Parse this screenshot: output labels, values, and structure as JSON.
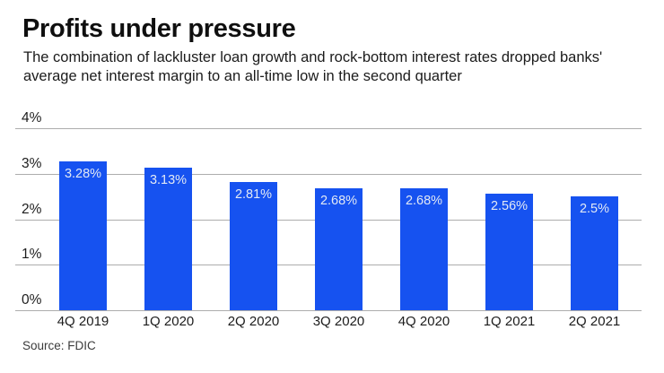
{
  "header": {
    "title": "Profits under pressure",
    "subtitle_lines": [
      "The combination of lackluster loan growth and rock-bottom interest rates dropped banks'",
      "average net interest margin to an all-time low in the second quarter"
    ]
  },
  "chart_data": {
    "type": "bar",
    "title": "Profits under pressure",
    "subtitle": "The combination of lackluster loan growth and rock-bottom interest rates dropped banks' average net interest margin to an all-time low in the second quarter",
    "categories": [
      "4Q 2019",
      "1Q 2020",
      "2Q 2020",
      "3Q 2020",
      "4Q 2020",
      "1Q 2021",
      "2Q 2021"
    ],
    "values": [
      3.28,
      3.13,
      2.81,
      2.68,
      2.68,
      2.56,
      2.5
    ],
    "value_labels": [
      "3.28%",
      "3.13%",
      "2.81%",
      "2.68%",
      "2.68%",
      "2.56%",
      "2.5%"
    ],
    "xlabel": "",
    "ylabel": "",
    "ylim": [
      0,
      4
    ],
    "yticks": [
      {
        "label": "0%",
        "value": 0
      },
      {
        "label": "1%",
        "value": 1
      },
      {
        "label": "2%",
        "value": 2
      },
      {
        "label": "3%",
        "value": 3
      },
      {
        "label": "4%",
        "value": 4
      }
    ],
    "grid": true,
    "legend": false,
    "bar_color": "#1652f0",
    "bar_label_color": "#e2e9f5",
    "gridline_color": "#adadad"
  },
  "source": "Source: FDIC"
}
